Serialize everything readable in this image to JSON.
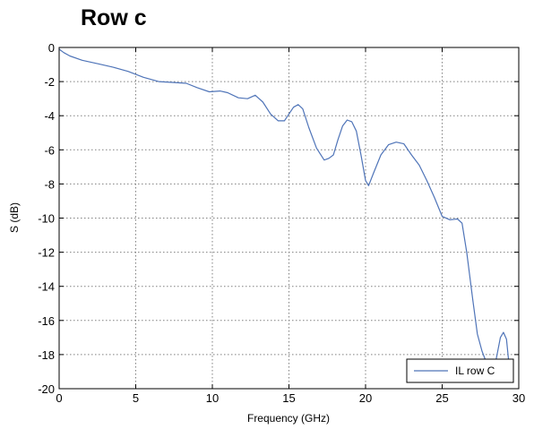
{
  "chart_data": {
    "type": "line",
    "title": "Row c",
    "xlabel": "Frequency (GHz)",
    "ylabel": "S (dB)",
    "xlim": [
      0,
      30
    ],
    "ylim": [
      -20,
      0
    ],
    "xticks": [
      0,
      5,
      10,
      15,
      20,
      25,
      30
    ],
    "yticks": [
      0,
      -2,
      -4,
      -6,
      -8,
      -10,
      -12,
      -14,
      -16,
      -18,
      -20
    ],
    "grid": true,
    "legend_position": "bottom-right",
    "series": [
      {
        "name": "IL row C",
        "color": "#4f74b8",
        "points": [
          [
            0,
            -0.1
          ],
          [
            0.3,
            -0.3
          ],
          [
            0.7,
            -0.5
          ],
          [
            1.5,
            -0.75
          ],
          [
            2.5,
            -0.95
          ],
          [
            3.5,
            -1.15
          ],
          [
            4.5,
            -1.4
          ],
          [
            5.5,
            -1.75
          ],
          [
            6.5,
            -2.0
          ],
          [
            7.5,
            -2.05
          ],
          [
            8.3,
            -2.1
          ],
          [
            9.0,
            -2.35
          ],
          [
            9.8,
            -2.6
          ],
          [
            10.5,
            -2.55
          ],
          [
            11.0,
            -2.65
          ],
          [
            11.7,
            -2.95
          ],
          [
            12.3,
            -3.0
          ],
          [
            12.8,
            -2.8
          ],
          [
            13.3,
            -3.2
          ],
          [
            13.8,
            -3.9
          ],
          [
            14.3,
            -4.3
          ],
          [
            14.7,
            -4.3
          ],
          [
            15.0,
            -3.9
          ],
          [
            15.3,
            -3.5
          ],
          [
            15.6,
            -3.35
          ],
          [
            15.9,
            -3.6
          ],
          [
            16.3,
            -4.7
          ],
          [
            16.8,
            -5.9
          ],
          [
            17.3,
            -6.6
          ],
          [
            17.6,
            -6.5
          ],
          [
            17.9,
            -6.3
          ],
          [
            18.2,
            -5.4
          ],
          [
            18.5,
            -4.6
          ],
          [
            18.8,
            -4.25
          ],
          [
            19.1,
            -4.35
          ],
          [
            19.4,
            -4.9
          ],
          [
            19.7,
            -6.3
          ],
          [
            20.0,
            -7.8
          ],
          [
            20.2,
            -8.1
          ],
          [
            20.5,
            -7.4
          ],
          [
            21.0,
            -6.3
          ],
          [
            21.5,
            -5.7
          ],
          [
            22.0,
            -5.55
          ],
          [
            22.5,
            -5.65
          ],
          [
            23.0,
            -6.3
          ],
          [
            23.5,
            -6.9
          ],
          [
            24.0,
            -7.8
          ],
          [
            24.5,
            -8.8
          ],
          [
            25.0,
            -9.9
          ],
          [
            25.5,
            -10.1
          ],
          [
            26.0,
            -10.05
          ],
          [
            26.3,
            -10.3
          ],
          [
            26.6,
            -12.0
          ],
          [
            27.0,
            -14.8
          ],
          [
            27.3,
            -16.8
          ],
          [
            27.6,
            -17.8
          ],
          [
            27.9,
            -18.5
          ],
          [
            28.2,
            -18.9
          ],
          [
            28.5,
            -18.4
          ],
          [
            28.8,
            -17.0
          ],
          [
            29.0,
            -16.7
          ],
          [
            29.2,
            -17.1
          ],
          [
            29.4,
            -18.9
          ]
        ]
      }
    ]
  }
}
